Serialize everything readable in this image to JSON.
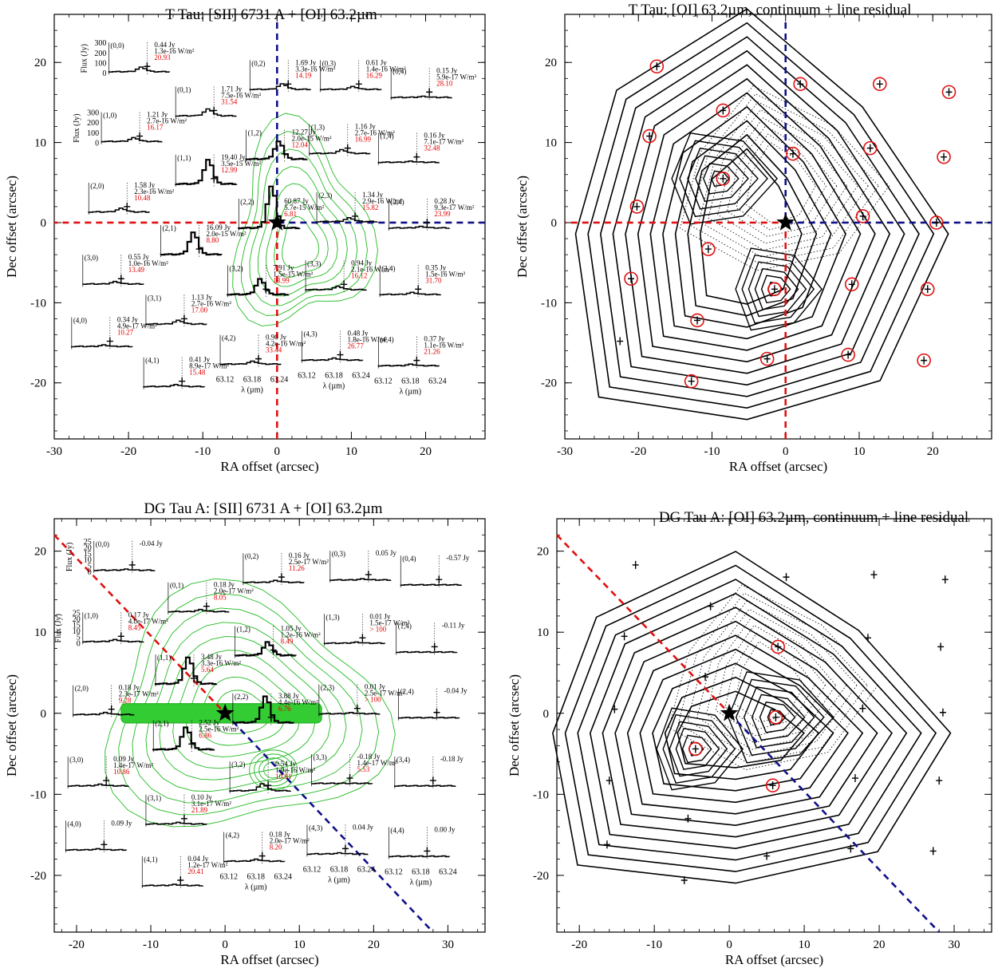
{
  "chart_data": [
    {
      "type": "scatter",
      "title": "T Tau:  [SII] 6731 A + [OI] 63.2µm",
      "xlabel": "RA offset (arcsec)",
      "ylabel": "Dec offset (arcsec)",
      "xlim": [
        -30,
        28
      ],
      "ylim": [
        -27,
        26
      ],
      "xticks": [
        "-30",
        "-20",
        "-10",
        "0",
        "10",
        "20"
      ],
      "yticks": [
        "-20",
        "-10",
        "0",
        "10",
        "20"
      ],
      "lines": {
        "red": [
          [
            0,
            -27
          ],
          [
            0,
            0
          ],
          [
            -30,
            0
          ]
        ],
        "blue": [
          [
            0,
            25
          ],
          [
            0,
            0
          ],
          [
            28,
            0
          ]
        ]
      },
      "star": [
        0,
        0
      ],
      "insets": [
        {
          "id": "(0,0)",
          "pos": [
            -17.5,
            19.5
          ],
          "flux": "0.44 Jy",
          "wm": "1.3e-16 W/m²",
          "snr": "20.93",
          "peak": 0.1
        },
        {
          "id": "(0,1)",
          "pos": [
            -8.5,
            14.0
          ],
          "flux": "1.71 Jy",
          "wm": "7.5e-16 W/m²",
          "snr": "31.54",
          "peak": 0.15
        },
        {
          "id": "(0,2)",
          "pos": [
            1.5,
            17.3
          ],
          "flux": "1.69 Jy",
          "wm": "3.3e-16 W/m²",
          "snr": "14.19",
          "peak": 0.12
        },
        {
          "id": "(0,3)",
          "pos": [
            11.0,
            17.3
          ],
          "flux": "0.61 Jy",
          "wm": "1.4e-16 W/m²",
          "snr": "16.29",
          "peak": 0.06
        },
        {
          "id": "(0,4)",
          "pos": [
            20.5,
            16.3
          ],
          "flux": "0.15 Jy",
          "wm": "5.9e-17 W/m²",
          "snr": "28.10",
          "peak": 0.02
        },
        {
          "id": "(1,0)",
          "pos": [
            -18.5,
            10.8
          ],
          "flux": "1.21 Jy",
          "wm": "2.7e-16 W/m²",
          "snr": "16.17",
          "peak": 0.08
        },
        {
          "id": "(1,1)",
          "pos": [
            -8.5,
            5.5
          ],
          "flux": "19.40 Jy",
          "wm": "3.5e-15 W/m²",
          "snr": "12.99",
          "peak": 0.55
        },
        {
          "id": "(1,2)",
          "pos": [
            1.0,
            8.6
          ],
          "flux": "12.27 Jy",
          "wm": "2.0e-15 W/m²",
          "snr": "12.04",
          "peak": 0.4
        },
        {
          "id": "(1,3)",
          "pos": [
            9.5,
            9.3
          ],
          "flux": "1.16 Jy",
          "wm": "2.7e-16 W/m²",
          "snr": "16.99",
          "peak": 0.08
        },
        {
          "id": "(1,4)",
          "pos": [
            18.8,
            8.2
          ],
          "flux": "0.16 Jy",
          "wm": "7.1e-17 W/m²",
          "snr": "32.48",
          "peak": 0.02
        },
        {
          "id": "(2,0)",
          "pos": [
            -20.2,
            2.0
          ],
          "flux": "1.58 Jy",
          "wm": "2.3e-16 W/m²",
          "snr": "10.48",
          "peak": 0.08
        },
        {
          "id": "(2,1)",
          "pos": [
            -10.5,
            -3.3
          ],
          "flux": "16.09 Jy",
          "wm": "2.0e-15 W/m²",
          "snr": "8.80",
          "peak": 0.5
        },
        {
          "id": "(2,2)",
          "pos": [
            0.0,
            0.0
          ],
          "flux": "60.87 Jy",
          "wm": "5.7e-15 W/m²",
          "snr": "6.81",
          "peak": 0.95
        },
        {
          "id": "(2,3)",
          "pos": [
            10.5,
            0.8
          ],
          "flux": "1.34 Jy",
          "wm": "2.9e-16 W/m²",
          "snr": "15.82",
          "peak": 0.08
        },
        {
          "id": "(2,4)",
          "pos": [
            20.2,
            0.0
          ],
          "flux": "0.28 Jy",
          "wm": "9.3e-17 W/m²",
          "snr": "23.99",
          "peak": 0.03
        },
        {
          "id": "(3,0)",
          "pos": [
            -21.0,
            -7.0
          ],
          "flux": "0.55 Jy",
          "wm": "1.0e-16 W/m²",
          "snr": "13.49",
          "peak": 0.05
        },
        {
          "id": "(3,1)",
          "pos": [
            -12.5,
            -12.0
          ],
          "flux": "1.13 Jy",
          "wm": "2.7e-16 W/m²",
          "snr": "17.00",
          "peak": 0.08
        },
        {
          "id": "(3,2)",
          "pos": [
            -1.5,
            -8.3
          ],
          "flux": "7.91 Jy",
          "wm": "1.5e-15 W/m²",
          "snr": "13.99",
          "peak": 0.35
        },
        {
          "id": "(3,3)",
          "pos": [
            9.0,
            -7.7
          ],
          "flux": "0.94 Jy",
          "wm": "2.1e-16 W/m²",
          "snr": "16.12",
          "peak": 0.07
        },
        {
          "id": "(3,4)",
          "pos": [
            19.0,
            -8.3
          ],
          "flux": "0.35 Jy",
          "wm": "1.5e-16 W/m²",
          "snr": "31.70",
          "peak": 0.04
        },
        {
          "id": "(4,0)",
          "pos": [
            -22.5,
            -14.8
          ],
          "flux": "0.34 Jy",
          "wm": "4.9e-17 W/m²",
          "snr": "10.27",
          "peak": 0.03
        },
        {
          "id": "(4,1)",
          "pos": [
            -12.8,
            -19.8
          ],
          "flux": "0.41 Jy",
          "wm": "8.9e-17 W/m²",
          "snr": "15.48",
          "peak": 0.04
        },
        {
          "id": "(4,2)",
          "pos": [
            -2.5,
            -17.0
          ],
          "flux": "0.90 Jy",
          "wm": "4.2e-16 W/m²",
          "snr": "33.44",
          "peak": 0.06
        },
        {
          "id": "(4,3)",
          "pos": [
            8.5,
            -16.5
          ],
          "flux": "0.48 Jy",
          "wm": "1.8e-16 W/m²",
          "snr": "26.77",
          "peak": 0.04
        },
        {
          "id": "(4,4)",
          "pos": [
            18.8,
            -17.2
          ],
          "flux": "0.37 Jy",
          "wm": "1.1e-16 W/m²",
          "snr": "21.26",
          "peak": 0.03
        }
      ],
      "inset_flux_label": "Flux (Jy)",
      "inset_flux_ticks": [
        "300",
        "200",
        "100",
        "0"
      ],
      "inset_wave_ticks": [
        "63.12",
        "63.18",
        "63.24"
      ],
      "inset_wave_label": "λ (µm)"
    },
    {
      "type": "contour",
      "title": "T Tau:  [OI] 63.2µm, continuum + line residual",
      "xlabel": "RA offset (arcsec)",
      "ylabel": "Dec offset (arcsec)",
      "xlim": [
        -30,
        28
      ],
      "ylim": [
        -27,
        26
      ],
      "xticks": [
        "-30",
        "-20",
        "-10",
        "0",
        "10",
        "20"
      ],
      "yticks": [
        "-20",
        "-10",
        "0",
        "10",
        "20"
      ],
      "lines": {
        "red": [
          [
            0,
            -27
          ],
          [
            0,
            0
          ],
          [
            -30,
            0
          ]
        ],
        "blue": [
          [
            0,
            25
          ],
          [
            0,
            0
          ],
          [
            28,
            0
          ]
        ]
      },
      "star": [
        0,
        0
      ],
      "points": [
        [
          -17.5,
          19.5
        ],
        [
          -8.5,
          14.0
        ],
        [
          2.0,
          17.3
        ],
        [
          12.8,
          17.3
        ],
        [
          22.2,
          16.3
        ],
        [
          -18.5,
          10.8
        ],
        [
          -8.5,
          5.5
        ],
        [
          1.0,
          8.6
        ],
        [
          11.5,
          9.3
        ],
        [
          21.5,
          8.2
        ],
        [
          -20.2,
          2.0
        ],
        [
          -10.5,
          -3.3
        ],
        [
          10.5,
          0.8
        ],
        [
          20.5,
          0.0
        ],
        [
          -21.0,
          -7.0
        ],
        [
          -12.0,
          -12.2
        ],
        [
          -1.5,
          -8.3
        ],
        [
          9.0,
          -7.7
        ],
        [
          19.3,
          -8.3
        ],
        [
          -22.5,
          -14.8
        ],
        [
          -12.8,
          -19.8
        ],
        [
          -2.5,
          -17.0
        ],
        [
          8.5,
          -16.5
        ],
        [
          18.8,
          -17.2
        ]
      ],
      "circled": [
        [
          -17.5,
          19.5
        ],
        [
          -8.5,
          14.0
        ],
        [
          2.0,
          17.3
        ],
        [
          12.8,
          17.3
        ],
        [
          22.2,
          16.3
        ],
        [
          -18.5,
          10.8
        ],
        [
          -8.5,
          5.5
        ],
        [
          1.0,
          8.6
        ],
        [
          11.5,
          9.3
        ],
        [
          21.5,
          8.2
        ],
        [
          -20.2,
          2.0
        ],
        [
          -10.5,
          -3.3
        ],
        [
          10.5,
          0.8
        ],
        [
          20.5,
          0.0
        ],
        [
          -21.0,
          -7.0
        ],
        [
          -12.0,
          -12.2
        ],
        [
          -1.5,
          -8.3
        ],
        [
          9.0,
          -7.7
        ],
        [
          19.3,
          -8.3
        ],
        [
          -12.8,
          -19.8
        ],
        [
          -2.5,
          -17.0
        ],
        [
          8.5,
          -16.5
        ],
        [
          18.8,
          -17.2
        ]
      ],
      "contour_peaks": [
        [
          -9.0,
          5.5
        ],
        [
          -1.5,
          -8.3
        ]
      ]
    },
    {
      "type": "scatter",
      "title": "DG Tau A:  [SII] 6731 A + [OI] 63.2µm",
      "xlabel": "RA offset (arcsec)",
      "ylabel": "Dec offset (arcsec)",
      "xlim": [
        -23,
        35
      ],
      "ylim": [
        -27,
        24
      ],
      "xticks": [
        "-20",
        "-10",
        "0",
        "10",
        "20",
        "30"
      ],
      "yticks": [
        "-20",
        "-10",
        "0",
        "10",
        "20"
      ],
      "lines": {
        "red": [
          [
            -23,
            22
          ],
          [
            0,
            0
          ]
        ],
        "blue": [
          [
            0,
            0
          ],
          [
            28,
            -27
          ]
        ]
      },
      "star": [
        0,
        0
      ],
      "insets": [
        {
          "id": "(0,0)",
          "pos": [
            -12.5,
            18.3
          ],
          "flux": "-0.04 Jy",
          "wm": "",
          "snr": "",
          "peak": 0.02
        },
        {
          "id": "(0,1)",
          "pos": [
            -2.5,
            13.2
          ],
          "flux": "0.18 Jy",
          "wm": "2.0e-17 W/m²",
          "snr": "8.05",
          "peak": 0.04
        },
        {
          "id": "(0,2)",
          "pos": [
            7.6,
            16.8
          ],
          "flux": "0.16 Jy",
          "wm": "2.5e-17 W/m²",
          "snr": "11.26",
          "peak": 0.04
        },
        {
          "id": "(0,3)",
          "pos": [
            19.3,
            17.1
          ],
          "flux": "0.05 Jy",
          "wm": "",
          "snr": "",
          "peak": 0.02
        },
        {
          "id": "(0,4)",
          "pos": [
            28.8,
            16.5
          ],
          "flux": "-0.57 Jy",
          "wm": "",
          "snr": "",
          "peak": 0.0
        },
        {
          "id": "(1,0)",
          "pos": [
            -14.0,
            9.5
          ],
          "flux": "0.17 Jy",
          "wm": "4.0e-17 W/m²",
          "snr": "8.45",
          "peak": 0.04
        },
        {
          "id": "(1,1)",
          "pos": [
            -4.2,
            4.3
          ],
          "flux": "3.48 Jy",
          "wm": "3.3e-16 W/m²",
          "snr": "5.64",
          "peak": 0.6
        },
        {
          "id": "(1,2)",
          "pos": [
            6.5,
            7.8
          ],
          "flux": "1.05 Jy",
          "wm": "1.2e-16 W/m²",
          "snr": "8.49",
          "peak": 0.3
        },
        {
          "id": "(1,3)",
          "pos": [
            18.5,
            9.3
          ],
          "flux": "0.01 Jy",
          "wm": "1.5e-17 W/m²",
          "snr": "> 100",
          "peak": 0.02
        },
        {
          "id": "(1,4)",
          "pos": [
            28.2,
            8.2
          ],
          "flux": "-0.11 Jy",
          "wm": "",
          "snr": "",
          "peak": 0.0
        },
        {
          "id": "(2,0)",
          "pos": [
            -15.3,
            0.5
          ],
          "flux": "0.18 Jy",
          "wm": "2.3e-17 W/m²",
          "snr": "9.28",
          "peak": 0.04
        },
        {
          "id": "(2,1)",
          "pos": [
            -4.5,
            -3.8
          ],
          "flux": "2.52 Jy",
          "wm": "2.5e-16 W/m²",
          "snr": "6.86",
          "peak": 0.5
        },
        {
          "id": "(2,2)",
          "pos": [
            6.2,
            -0.5
          ],
          "flux": "3.88 Jy",
          "wm": "4.4e-16 W/m²",
          "snr": "6.76",
          "peak": 0.6
        },
        {
          "id": "(2,3)",
          "pos": [
            17.8,
            0.6
          ],
          "flux": "0.01 Jy",
          "wm": "2.5e-17 W/m²",
          "snr": "> 100",
          "peak": 0.02
        },
        {
          "id": "(2,4)",
          "pos": [
            28.5,
            0.1
          ],
          "flux": "-0.04 Jy",
          "wm": "",
          "snr": "",
          "peak": 0.0
        },
        {
          "id": "(3,0)",
          "pos": [
            -16.0,
            -8.3
          ],
          "flux": "0.09 Jy",
          "wm": "1.4e-17 W/m²",
          "snr": "10.86",
          "peak": 0.03
        },
        {
          "id": "(3,1)",
          "pos": [
            -5.5,
            -13.0
          ],
          "flux": "0.10 Jy",
          "wm": "3.1e-17 W/m²",
          "snr": "21.89",
          "peak": 0.03
        },
        {
          "id": "(3,2)",
          "pos": [
            5.8,
            -8.9
          ],
          "flux": "0.54 Jy",
          "wm": "1.0e-16 W/m²",
          "snr": "10.91",
          "peak": 0.15
        },
        {
          "id": "(3,3)",
          "pos": [
            16.8,
            -8.0
          ],
          "flux": "-0.18 Jy",
          "wm": "1.4e-17 W/m²",
          "snr": "5.53",
          "peak": 0.0
        },
        {
          "id": "(3,4)",
          "pos": [
            28.0,
            -8.3
          ],
          "flux": "-0.18 Jy",
          "wm": "",
          "snr": "",
          "peak": 0.0
        },
        {
          "id": "(4,0)",
          "pos": [
            -16.3,
            -16.2
          ],
          "flux": "0.09 Jy",
          "wm": "",
          "snr": "",
          "peak": 0.02
        },
        {
          "id": "(4,1)",
          "pos": [
            -6.0,
            -20.6
          ],
          "flux": "0.04 Jy",
          "wm": "1.2e-17 W/m²",
          "snr": "20.41",
          "peak": 0.02
        },
        {
          "id": "(4,2)",
          "pos": [
            5.0,
            -17.6
          ],
          "flux": "0.18 Jy",
          "wm": "2.0e-17 W/m²",
          "snr": "8.20",
          "peak": 0.04
        },
        {
          "id": "(4,3)",
          "pos": [
            16.2,
            -16.7
          ],
          "flux": "0.04 Jy",
          "wm": "",
          "snr": "",
          "peak": 0.02
        },
        {
          "id": "(4,4)",
          "pos": [
            27.2,
            -17.0
          ],
          "flux": "0.00 Jy",
          "wm": "",
          "snr": "",
          "peak": 0.0
        }
      ],
      "inset_flux_label": "Flux (Jy)",
      "inset_flux_ticks": [
        "25",
        "20",
        "15",
        "10",
        "5",
        "0"
      ],
      "inset_wave_ticks": [
        "63.12",
        "63.18",
        "63.24"
      ],
      "inset_wave_label": "λ (µm)"
    },
    {
      "type": "contour",
      "title": "DG Tau A:  [OI] 63.2µm, continuum + line residual",
      "xlabel": "RA offset (arcsec)",
      "ylabel": "Dec offset (arcsec)",
      "xlim": [
        -23,
        35
      ],
      "ylim": [
        -27,
        24
      ],
      "xticks": [
        "-20",
        "-10",
        "0",
        "10",
        "20",
        "30"
      ],
      "yticks": [
        "-20",
        "-10",
        "0",
        "10",
        "20"
      ],
      "lines": {
        "red": [
          [
            -23,
            22
          ],
          [
            0,
            0
          ]
        ],
        "blue": [
          [
            0,
            0
          ],
          [
            28,
            -27
          ]
        ]
      },
      "star": [
        0,
        0
      ],
      "points": [
        [
          -12.5,
          18.3
        ],
        [
          -2.5,
          13.2
        ],
        [
          7.6,
          16.8
        ],
        [
          19.3,
          17.1
        ],
        [
          28.8,
          16.5
        ],
        [
          -14.0,
          9.5
        ],
        [
          6.5,
          8.2
        ],
        [
          18.5,
          9.3
        ],
        [
          28.2,
          8.2
        ],
        [
          -15.3,
          0.5
        ],
        [
          6.2,
          -0.5
        ],
        [
          17.8,
          0.6
        ],
        [
          28.5,
          0.1
        ],
        [
          -16.0,
          -8.3
        ],
        [
          -4.5,
          -4.4
        ],
        [
          5.8,
          -8.9
        ],
        [
          16.8,
          -8.0
        ],
        [
          28.0,
          -8.3
        ],
        [
          -16.3,
          -16.2
        ],
        [
          -6.0,
          -20.6
        ],
        [
          5.0,
          -17.6
        ],
        [
          16.2,
          -16.7
        ],
        [
          27.2,
          -17.0
        ],
        [
          -3.2,
          4.5
        ],
        [
          -5.5,
          -13.0
        ]
      ],
      "circled": [
        [
          6.5,
          8.2
        ],
        [
          6.2,
          -0.5
        ],
        [
          -4.5,
          -4.4
        ],
        [
          5.8,
          -8.9
        ]
      ],
      "contour_peaks": [
        [
          6.2,
          -0.5
        ],
        [
          -4.5,
          -4.4
        ]
      ]
    }
  ]
}
